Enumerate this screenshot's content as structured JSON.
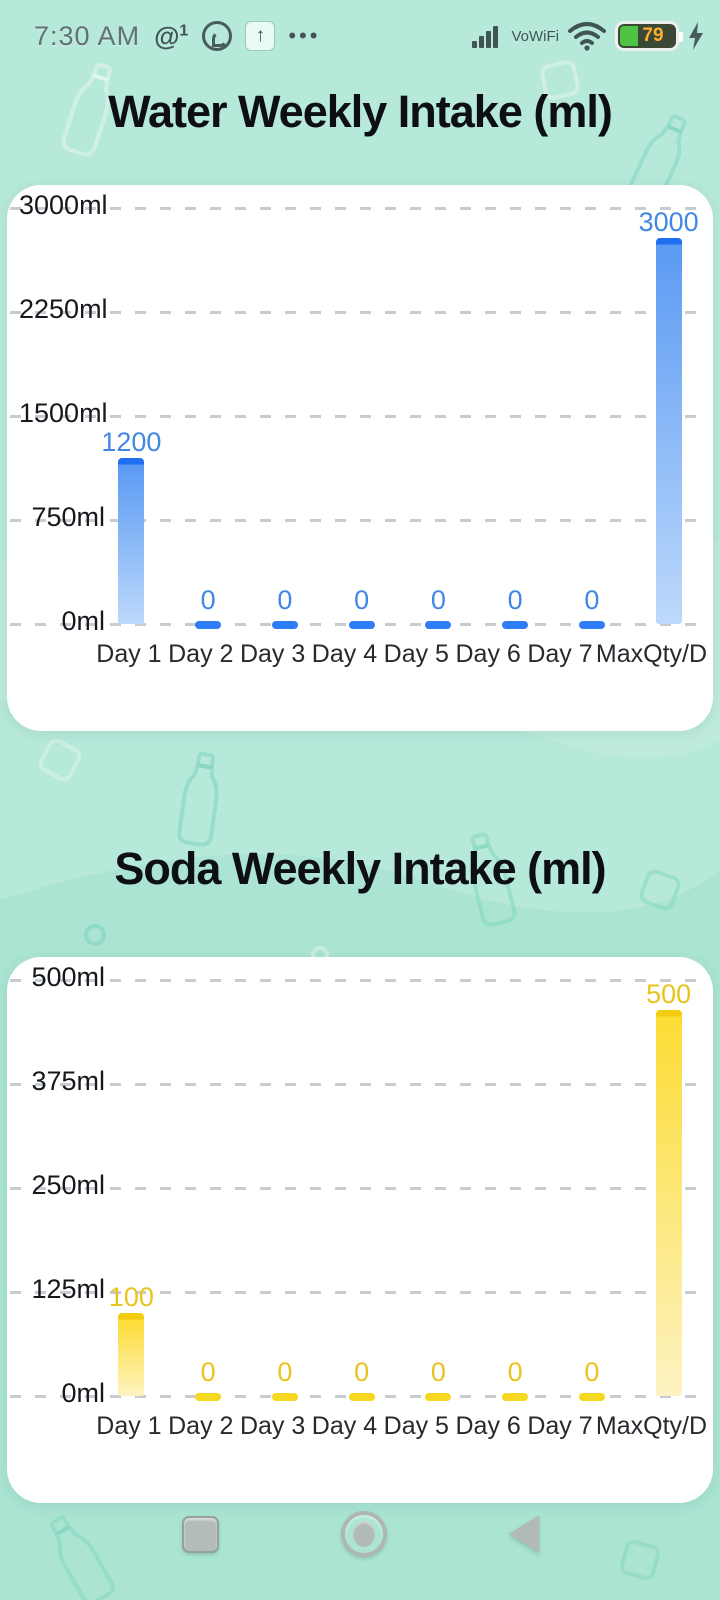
{
  "status_bar": {
    "time": "7:30 AM",
    "at_symbol": "@",
    "at_badge": "1",
    "upload_arrow": "↑",
    "more_dots": "•••",
    "vowifi_label": "VoWiFi",
    "battery_percent": "79"
  },
  "titles": {
    "water": "Water Weekly Intake (ml)",
    "soda": "Soda Weekly Intake (ml)"
  },
  "chart_data": [
    {
      "type": "bar",
      "title": "Water Weekly Intake (ml)",
      "categories": [
        "Day 1",
        "Day 2",
        "Day 3",
        "Day 4",
        "Day 5",
        "Day 6",
        "Day 7",
        "MaxQty/D"
      ],
      "values": [
        1200,
        0,
        0,
        0,
        0,
        0,
        0,
        3000
      ],
      "y_tick_labels": [
        "3000ml",
        "2250ml",
        "1500ml",
        "750ml",
        "0ml"
      ],
      "ylim": [
        0,
        3000
      ],
      "xlabel": "",
      "ylabel": "",
      "grid": "horizontal-dashed",
      "legend": "none",
      "bar_cap_color": "#1e6ff2",
      "bar_gradient_top": "#5b9af3",
      "bar_gradient_bottom": "#bdd9fb",
      "zero_bar_color": "#2e7cf6",
      "value_label_color": "#4188e5"
    },
    {
      "type": "bar",
      "title": "Soda Weekly Intake (ml)",
      "categories": [
        "Day 1",
        "Day 2",
        "Day 3",
        "Day 4",
        "Day 5",
        "Day 6",
        "Day 7",
        "MaxQty/D"
      ],
      "values": [
        100,
        0,
        0,
        0,
        0,
        0,
        0,
        500
      ],
      "y_tick_labels": [
        "500ml",
        "375ml",
        "250ml",
        "125ml",
        "0ml"
      ],
      "ylim": [
        0,
        500
      ],
      "xlabel": "",
      "ylabel": "",
      "grid": "horizontal-dashed",
      "legend": "none",
      "bar_cap_color": "#f2cd0f",
      "bar_gradient_top": "#fcdc35",
      "bar_gradient_bottom": "#fdf3c2",
      "zero_bar_color": "#f5d81f",
      "value_label_color": "#e9c41e"
    }
  ],
  "nav_bar": {
    "recents": "recents",
    "home": "home",
    "back": "back"
  }
}
